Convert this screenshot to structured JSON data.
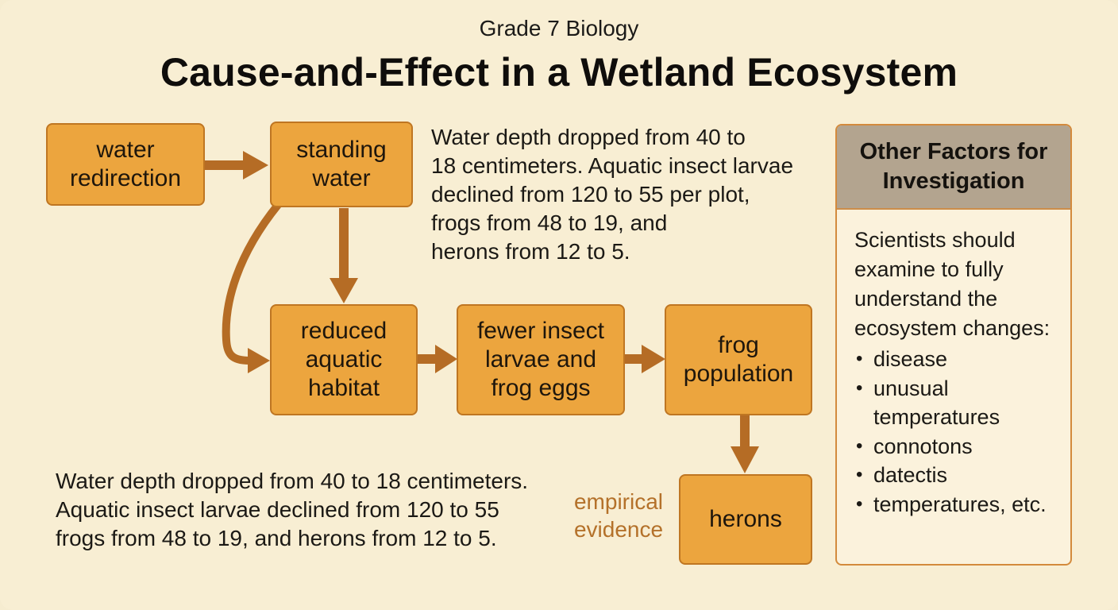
{
  "header": {
    "subtitle": "Grade 7 Biology",
    "title": "Cause-and-Effect in a Wetland Ecosystem"
  },
  "nodes": {
    "water_redirection": "water redirection",
    "standing_water": "standing water",
    "reduced_habitat": "reduced aquatic habitat",
    "fewer_larvae": "fewer insect larvae and frog eggs",
    "frog_population": "frog population",
    "herons": "herons"
  },
  "notes": {
    "top": "Water depth dropped from 40 to\n18 centimeters. Aquatic insect larvae\ndeclined from 120 to 55 per plot,\nfrogs from 48 to 19, and\nherons from 12 to 5.",
    "bottom": "Water depth dropped from 40 to 18 centimeters.\nAquatic insect larvae declined from 120 to 55\nfrogs from 48 to 19, and herons from 12 to 5.",
    "evidence_label": "empirical\nevidence"
  },
  "sidebar": {
    "title": "Other Factors for Investigation",
    "intro": "Scientists should examine to fully understand the ecosystem changes:",
    "items": [
      "disease",
      "unusual temperatures",
      "connotons",
      "datectis",
      "temperatures, etc."
    ]
  },
  "colors": {
    "node_fill": "#eca53e",
    "node_border": "#bf7622",
    "arrow": "#b56c25",
    "evidence_text": "#b4712a",
    "sidebar_header": "#b3a48f",
    "background": "#f8eed3"
  }
}
